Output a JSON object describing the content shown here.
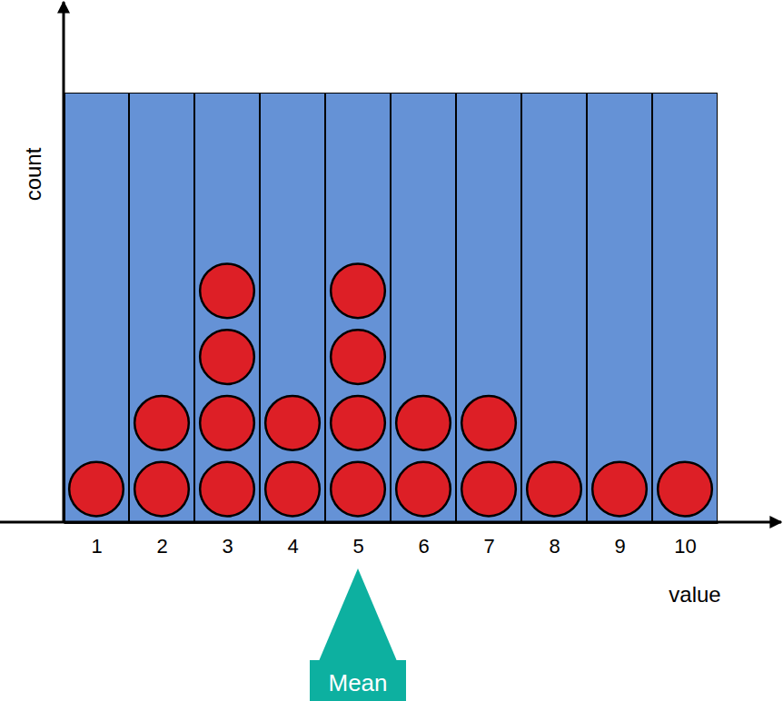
{
  "chart_data": {
    "type": "dot",
    "x_label": "value",
    "y_label": "count",
    "x": [
      1,
      2,
      3,
      4,
      5,
      6,
      7,
      8,
      9,
      10
    ],
    "values": [
      1,
      2,
      4,
      2,
      4,
      2,
      2,
      1,
      1,
      1
    ],
    "color": "#dd1f26",
    "xlim": [
      0.5,
      10.5
    ],
    "xticks": [
      1,
      2,
      3,
      4,
      5,
      6,
      7,
      8,
      9,
      10
    ],
    "ylim": [
      0,
      6.5
    ],
    "yticks": [],
    "tick_labels": "x",
    "annotations": [
      {
        "text": "Mean",
        "x": 5
      }
    ]
  }
}
